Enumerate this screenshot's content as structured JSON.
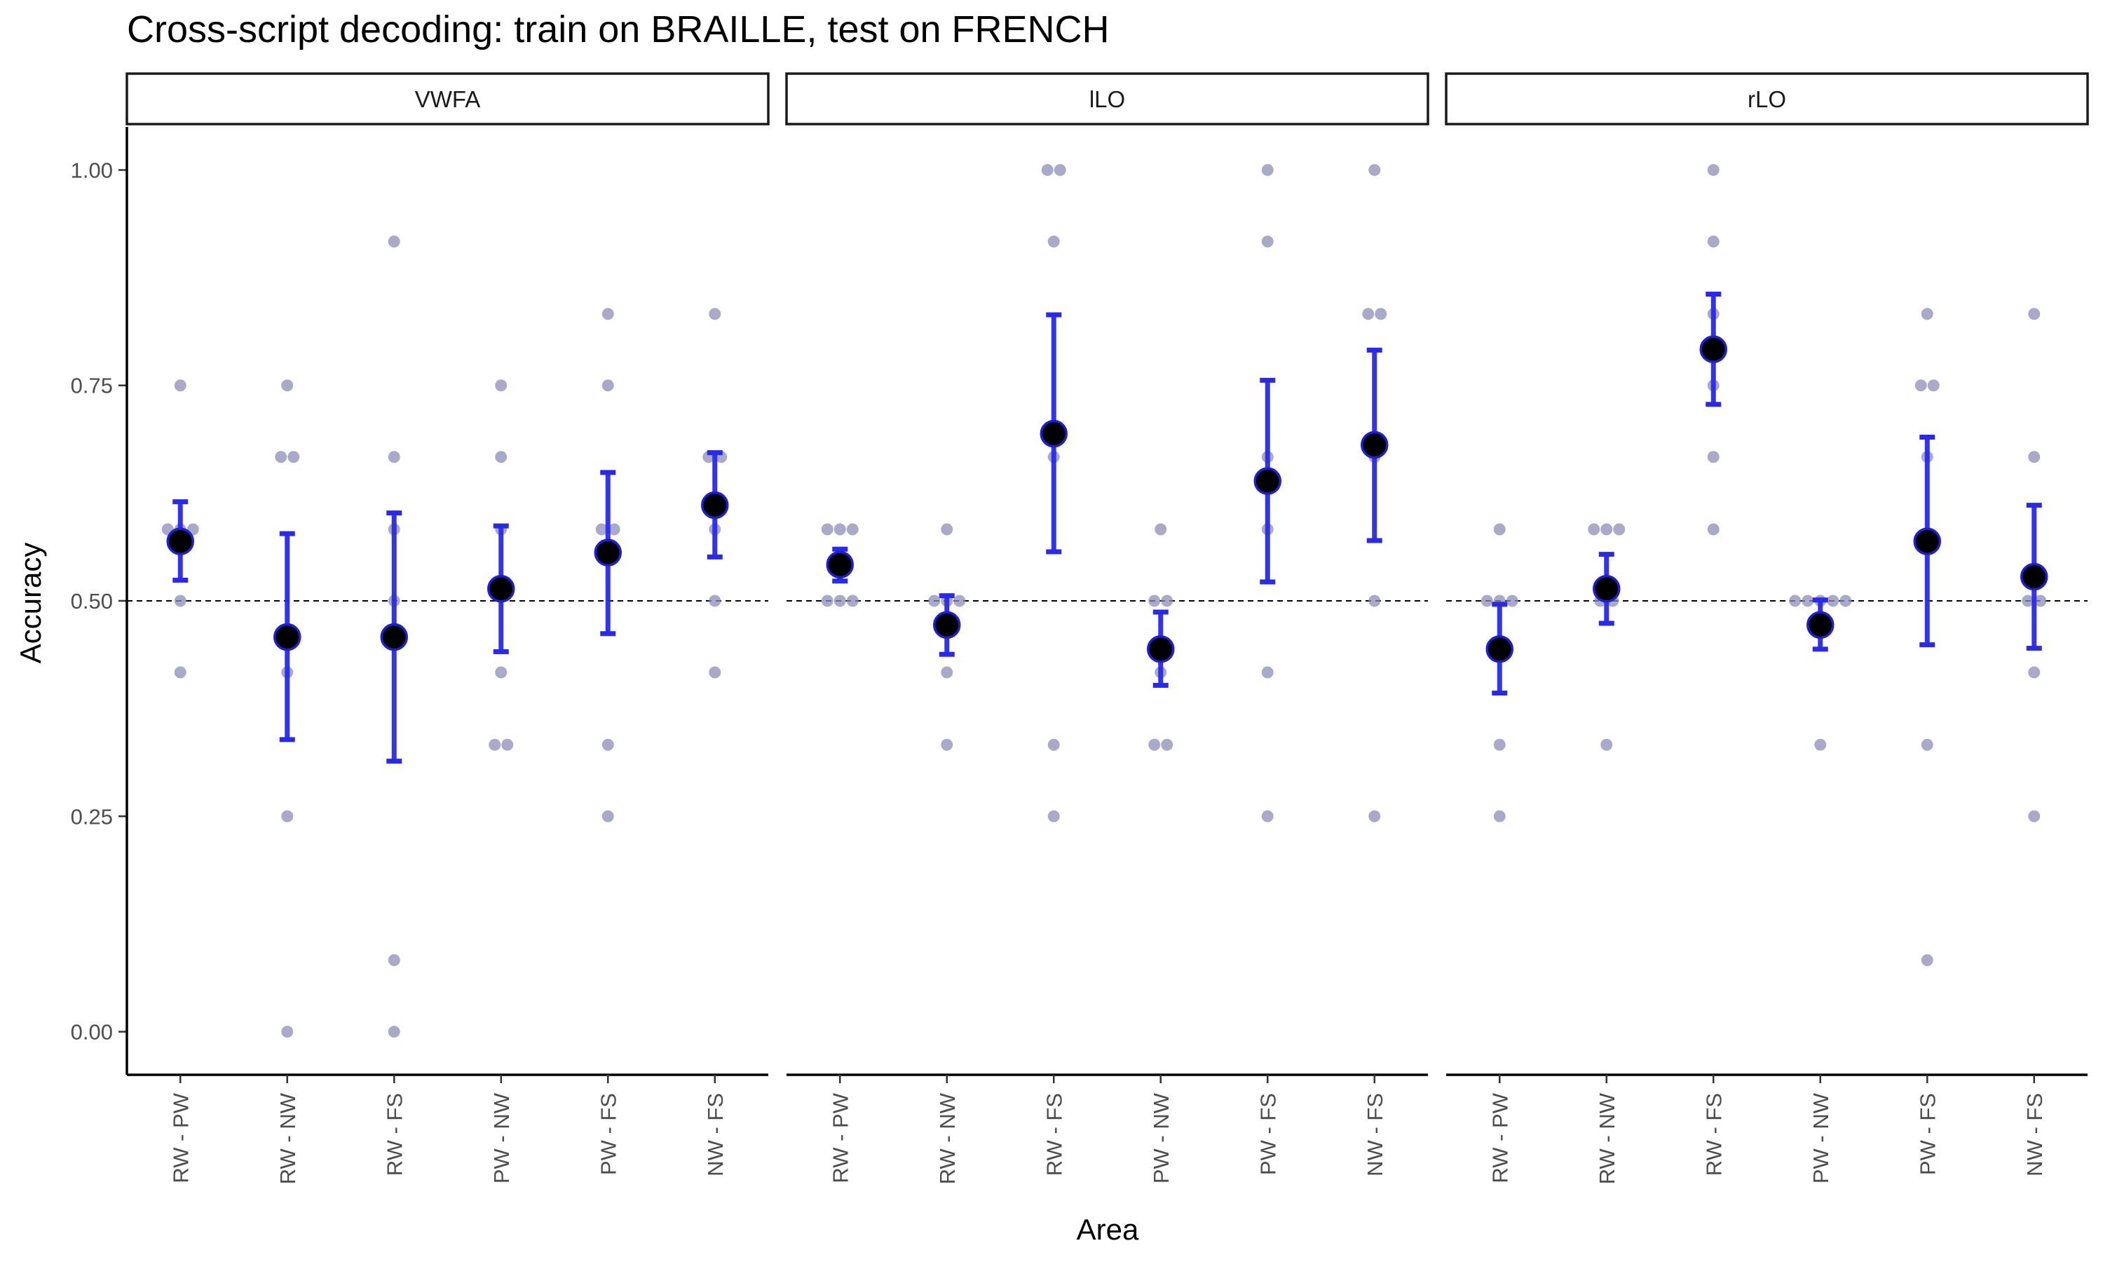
{
  "chart_data": {
    "type": "scatter",
    "title": "Cross-script decoding: train on BRAILLE, test on FRENCH",
    "xlabel": "Area",
    "ylabel": "Accuracy",
    "ylim": [
      -0.05,
      1.05
    ],
    "yticks": [
      0,
      0.25,
      0.5,
      0.75,
      1
    ],
    "ytick_labels": [
      "0.00",
      "0.25",
      "0.50",
      "0.75",
      "1.00"
    ],
    "chance_level": 0.5,
    "categories": [
      "RW - PW",
      "RW - NW",
      "RW - FS",
      "PW - NW",
      "PW - FS",
      "NW - FS"
    ],
    "grid": false,
    "colors": {
      "point": "#8c8cb8",
      "errorbar": "#2929e6",
      "mean": "#000000",
      "mean_outline": "#1f1fd0"
    },
    "panels": [
      {
        "name": "VWFA",
        "points": [
          [
            0.583,
            0.583,
            0.583,
            0.5,
            0.417,
            0.75
          ],
          [
            0.667,
            0.667,
            0.75,
            0.417,
            0.25,
            0.0
          ],
          [
            0.917,
            0.667,
            0.583,
            0.5,
            0.083,
            0.0
          ],
          [
            0.75,
            0.667,
            0.583,
            0.417,
            0.333,
            0.333
          ],
          [
            0.833,
            0.75,
            0.583,
            0.583,
            0.333,
            0.25
          ],
          [
            0.833,
            0.667,
            0.667,
            0.583,
            0.5,
            0.417
          ]
        ],
        "means": [
          0.569,
          0.458,
          0.458,
          0.514,
          0.556,
          0.611
        ],
        "lower": [
          0.524,
          0.339,
          0.314,
          0.441,
          0.462,
          0.551
        ],
        "upper": [
          0.615,
          0.578,
          0.602,
          0.587,
          0.649,
          0.672
        ]
      },
      {
        "name": "lLO",
        "points": [
          [
            0.583,
            0.583,
            0.583,
            0.5,
            0.5,
            0.5
          ],
          [
            0.583,
            0.5,
            0.5,
            0.5,
            0.417,
            0.333
          ],
          [
            1.0,
            1.0,
            0.917,
            0.667,
            0.333,
            0.25
          ],
          [
            0.583,
            0.5,
            0.5,
            0.417,
            0.333,
            0.333
          ],
          [
            1.0,
            0.917,
            0.667,
            0.583,
            0.417,
            0.25
          ],
          [
            1.0,
            0.833,
            0.833,
            0.667,
            0.5,
            0.25
          ]
        ],
        "means": [
          0.542,
          0.472,
          0.694,
          0.444,
          0.639,
          0.681
        ],
        "lower": [
          0.523,
          0.438,
          0.557,
          0.402,
          0.522,
          0.57
        ],
        "upper": [
          0.56,
          0.506,
          0.832,
          0.487,
          0.756,
          0.791
        ]
      },
      {
        "name": "rLO",
        "points": [
          [
            0.583,
            0.5,
            0.5,
            0.5,
            0.333,
            0.25
          ],
          [
            0.583,
            0.583,
            0.583,
            0.5,
            0.5,
            0.333
          ],
          [
            1.0,
            0.917,
            0.833,
            0.75,
            0.667,
            0.583
          ],
          [
            0.5,
            0.5,
            0.5,
            0.5,
            0.5,
            0.333
          ],
          [
            0.833,
            0.75,
            0.75,
            0.667,
            0.333,
            0.083
          ],
          [
            0.833,
            0.667,
            0.5,
            0.5,
            0.417,
            0.25
          ]
        ],
        "means": [
          0.444,
          0.514,
          0.792,
          0.472,
          0.569,
          0.528
        ],
        "lower": [
          0.393,
          0.474,
          0.728,
          0.444,
          0.449,
          0.445
        ],
        "upper": [
          0.496,
          0.554,
          0.856,
          0.501,
          0.69,
          0.611
        ]
      }
    ]
  }
}
